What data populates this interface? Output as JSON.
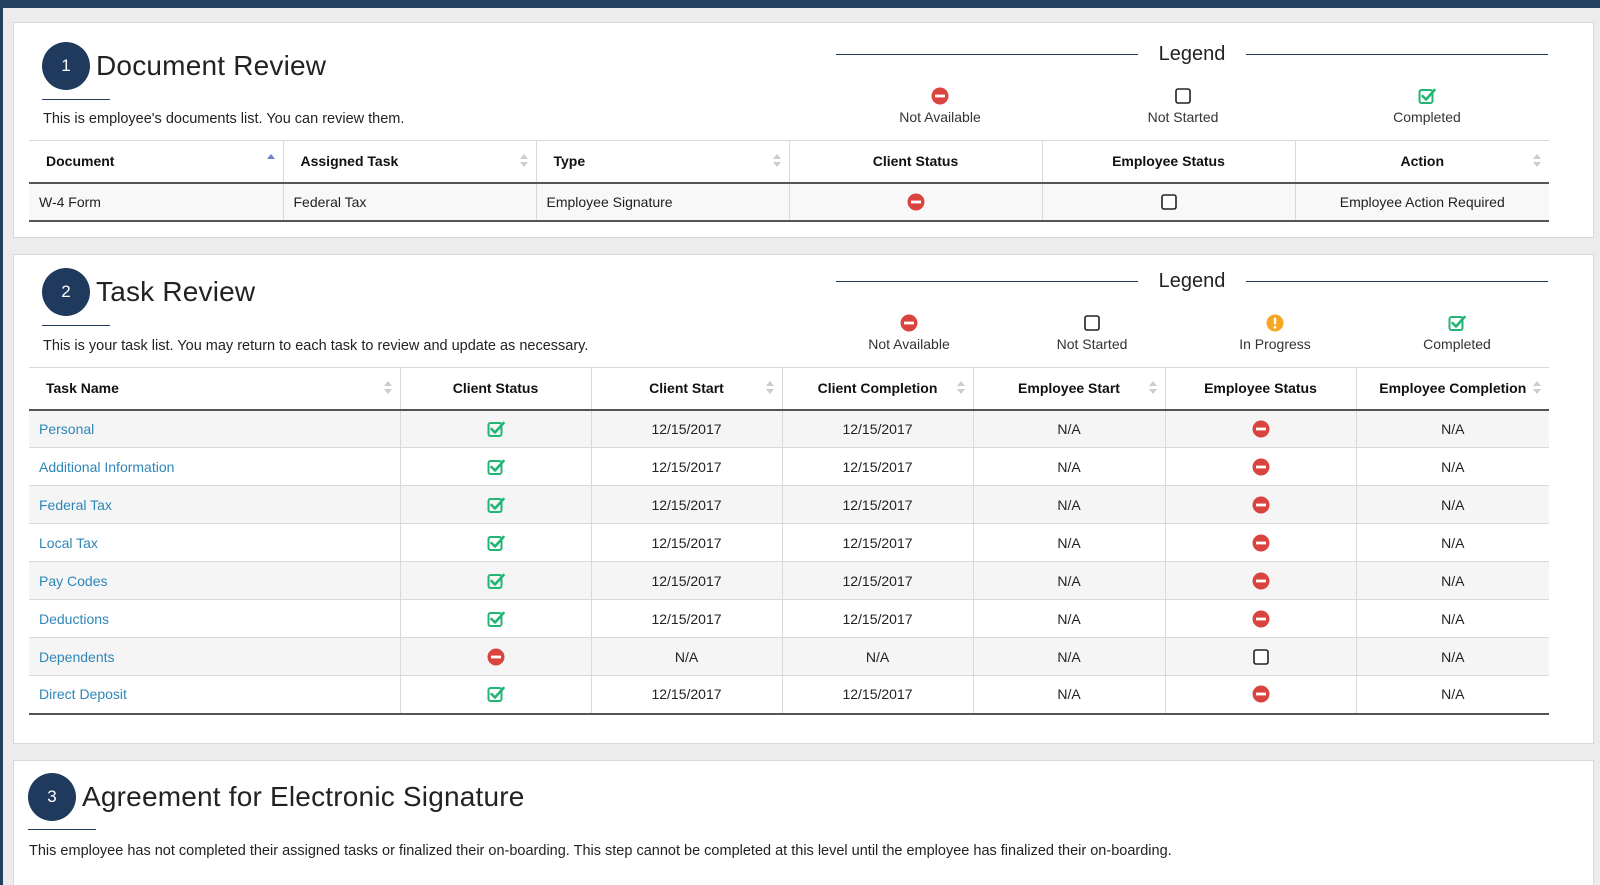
{
  "colors": {
    "brand": "#1f3a5c",
    "not_available": "#d9443f",
    "completed": "#22b573",
    "in_progress": "#f5a623",
    "link": "#2e86b8"
  },
  "document_review": {
    "step_number": "1",
    "title": "Document Review",
    "description": "This is employee's documents list. You can review them.",
    "legend": {
      "title": "Legend",
      "items": [
        {
          "icon": "not-available-icon",
          "label": "Not Available"
        },
        {
          "icon": "not-started-icon",
          "label": "Not Started"
        },
        {
          "icon": "completed-icon",
          "label": "Completed"
        }
      ]
    },
    "columns": [
      "Document",
      "Assigned Task",
      "Type",
      "Client Status",
      "Employee Status",
      "Action"
    ],
    "rows": [
      {
        "document": "W-4 Form",
        "assigned_task": "Federal Tax",
        "type": "Employee Signature",
        "client_status": "not-available-icon",
        "employee_status": "not-started-icon",
        "action": "Employee Action Required"
      }
    ]
  },
  "task_review": {
    "step_number": "2",
    "title": "Task Review",
    "description": "This is your task list. You may return to each task to review and update as necessary.",
    "legend": {
      "title": "Legend",
      "items": [
        {
          "icon": "not-available-icon",
          "label": "Not Available"
        },
        {
          "icon": "not-started-icon",
          "label": "Not Started"
        },
        {
          "icon": "in-progress-icon",
          "label": "In Progress"
        },
        {
          "icon": "completed-icon",
          "label": "Completed"
        }
      ]
    },
    "columns": [
      "Task Name",
      "Client Status",
      "Client Start",
      "Client Completion",
      "Employee Start",
      "Employee Status",
      "Employee Completion"
    ],
    "rows": [
      {
        "task": "Personal",
        "client_status": "completed-icon",
        "client_start": "12/15/2017",
        "client_completion": "12/15/2017",
        "employee_start": "N/A",
        "employee_status": "not-available-icon",
        "employee_completion": "N/A"
      },
      {
        "task": "Additional Information",
        "client_status": "completed-icon",
        "client_start": "12/15/2017",
        "client_completion": "12/15/2017",
        "employee_start": "N/A",
        "employee_status": "not-available-icon",
        "employee_completion": "N/A"
      },
      {
        "task": "Federal Tax",
        "client_status": "completed-icon",
        "client_start": "12/15/2017",
        "client_completion": "12/15/2017",
        "employee_start": "N/A",
        "employee_status": "not-available-icon",
        "employee_completion": "N/A"
      },
      {
        "task": "Local Tax",
        "client_status": "completed-icon",
        "client_start": "12/15/2017",
        "client_completion": "12/15/2017",
        "employee_start": "N/A",
        "employee_status": "not-available-icon",
        "employee_completion": "N/A"
      },
      {
        "task": "Pay Codes",
        "client_status": "completed-icon",
        "client_start": "12/15/2017",
        "client_completion": "12/15/2017",
        "employee_start": "N/A",
        "employee_status": "not-available-icon",
        "employee_completion": "N/A"
      },
      {
        "task": "Deductions",
        "client_status": "completed-icon",
        "client_start": "12/15/2017",
        "client_completion": "12/15/2017",
        "employee_start": "N/A",
        "employee_status": "not-available-icon",
        "employee_completion": "N/A"
      },
      {
        "task": "Dependents",
        "client_status": "not-available-icon",
        "client_start": "N/A",
        "client_completion": "N/A",
        "employee_start": "N/A",
        "employee_status": "not-started-icon",
        "employee_completion": "N/A"
      },
      {
        "task": "Direct Deposit",
        "client_status": "completed-icon",
        "client_start": "12/15/2017",
        "client_completion": "12/15/2017",
        "employee_start": "N/A",
        "employee_status": "not-available-icon",
        "employee_completion": "N/A"
      }
    ]
  },
  "agreement": {
    "step_number": "3",
    "title": "Agreement for Electronic Signature",
    "description": "This employee has not completed their assigned tasks or finalized their on-boarding. This step cannot be completed at this level until the employee has finalized their on-boarding."
  }
}
